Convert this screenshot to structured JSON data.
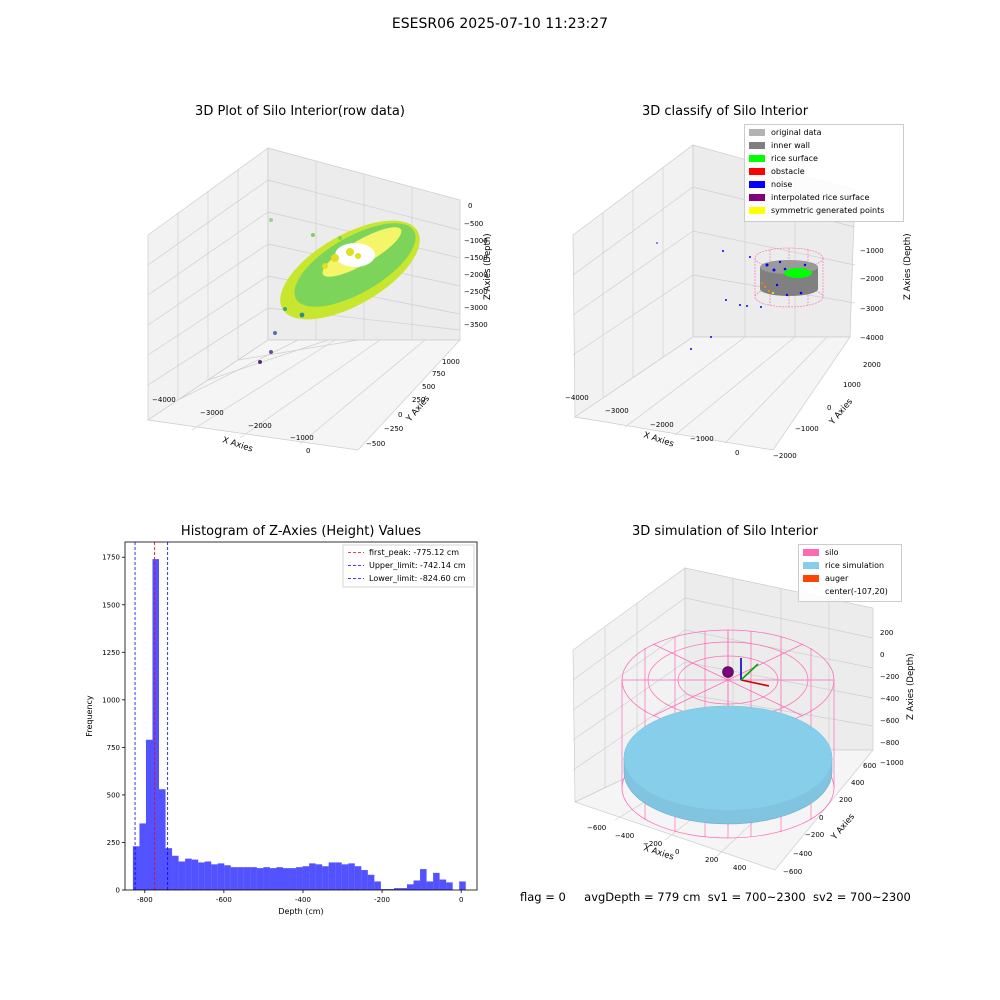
{
  "suptitle": "ESESR06 2025-07-10 11:23:27",
  "colors": {
    "original": "#b3b3b3",
    "wall": "#808080",
    "rice_surface": "#00ff00",
    "obstacle": "#ff0000",
    "noise": "#0000ff",
    "interp": "#800080",
    "symmetric": "#ffff00",
    "silo": "#ff69b4",
    "rice_sim": "#87ceeb",
    "auger": "#ff4500",
    "hist_bar": "#0000ff"
  },
  "panels": [
    {
      "title": "3D Plot of Silo Interior(row data)",
      "xlabel": "X Axies",
      "ylabel": "Y Axies",
      "zlabel": "Z Axies (Depth)",
      "xticks": [
        "−4000",
        "−3000",
        "−2000",
        "−1000",
        "0"
      ],
      "yticks": [
        "−500",
        "−250",
        "0",
        "250",
        "500",
        "750",
        "1000"
      ],
      "zticks": [
        "0",
        "−500",
        "−1000",
        "−1500",
        "−2000",
        "−2500",
        "−3000",
        "−3500"
      ]
    },
    {
      "title": "3D classify of Silo Interior",
      "xlabel": "X Axies",
      "ylabel": "Y Axies",
      "zlabel": "Z Axies (Depth)",
      "xticks": [
        "−4000",
        "−3000",
        "−2000",
        "−1000",
        "0"
      ],
      "yticks": [
        "−2000",
        "−1000",
        "0",
        "1000",
        "2000"
      ],
      "zticks": [
        "−1000",
        "−2000",
        "−3000",
        "−4000"
      ],
      "legend": [
        {
          "label": "original data",
          "color": "#b3b3b3"
        },
        {
          "label": "inner wall",
          "color": "#808080"
        },
        {
          "label": "rice surface",
          "color": "#00ff00"
        },
        {
          "label": "obstacle",
          "color": "#ff0000"
        },
        {
          "label": "noise",
          "color": "#0000ff"
        },
        {
          "label": "interpolated rice surface",
          "color": "#800080"
        },
        {
          "label": "symmetric generated points",
          "color": "#ffff00"
        }
      ]
    },
    {
      "title": "3D simulation of Silo Interior",
      "xlabel": "X Axies",
      "ylabel": "Y Axies",
      "zlabel": "Z Axies (Depth)",
      "xticks": [
        "−600",
        "−400",
        "−200",
        "0",
        "200",
        "400"
      ],
      "yticks": [
        "−600",
        "−400",
        "−200",
        "0",
        "200",
        "400",
        "600"
      ],
      "zticks": [
        "200",
        "0",
        "−200",
        "−400",
        "−600",
        "−800",
        "−1000"
      ],
      "legend": [
        {
          "label": "silo",
          "color": "#ff69b4"
        },
        {
          "label": "rice simulation",
          "color": "#87ceeb"
        },
        {
          "label": "auger",
          "color": "#ff4500"
        },
        {
          "label": "center(-107,20)",
          "color": ""
        }
      ]
    }
  ],
  "footer": {
    "flag": "flag = 0",
    "avg": "avgDepth = 779 cm",
    "sv1": "sv1 = 700~2300",
    "sv2": "sv2 = 700~2300"
  },
  "chart_data": {
    "type": "bar",
    "title": "Histogram of Z-Axies (Height) Values",
    "xlabel": "Depth (cm)",
    "ylabel": "Frequency",
    "xlim": [
      -850,
      40
    ],
    "ylim": [
      0,
      1830
    ],
    "xticks": [
      -800,
      -600,
      -400,
      -200,
      0
    ],
    "yticks": [
      0,
      250,
      500,
      750,
      1000,
      1250,
      1500,
      1750
    ],
    "bin_width": 16.5,
    "bins_start": [
      -830,
      -813.5,
      -797,
      -780.5,
      -764,
      -747.5,
      -731,
      -714.5,
      -698,
      -681.5,
      -665,
      -648.5,
      -632,
      -615.5,
      -599,
      -582.5,
      -566,
      -549.5,
      -533,
      -516.5,
      -500,
      -483.5,
      -467,
      -450.5,
      -434,
      -417.5,
      -401,
      -384.5,
      -368,
      -351.5,
      -335,
      -318.5,
      -302,
      -285.5,
      -269,
      -252.5,
      -236,
      -219.5,
      -203,
      -186.5,
      -170,
      -153.5,
      -137,
      -120.5,
      -104,
      -87.5,
      -71,
      -54.5,
      -38,
      -21.5,
      -5
    ],
    "values": [
      230,
      350,
      790,
      1740,
      530,
      220,
      180,
      150,
      165,
      160,
      145,
      150,
      135,
      140,
      130,
      120,
      120,
      120,
      120,
      115,
      120,
      115,
      120,
      115,
      115,
      120,
      125,
      140,
      135,
      125,
      145,
      145,
      135,
      140,
      125,
      105,
      80,
      45,
      5,
      5,
      10,
      10,
      30,
      50,
      110,
      45,
      90,
      55,
      40,
      0,
      45
    ],
    "lines": [
      {
        "label": "first_peak: -775.12 cm",
        "x": -775.12,
        "color": "#ff0000"
      },
      {
        "label": "Upper_limit: -742.14 cm",
        "x": -742.14,
        "color": "#0000ff"
      },
      {
        "label": "Lower_limit: -824.60 cm",
        "x": -824.6,
        "color": "#0000ff"
      }
    ]
  }
}
